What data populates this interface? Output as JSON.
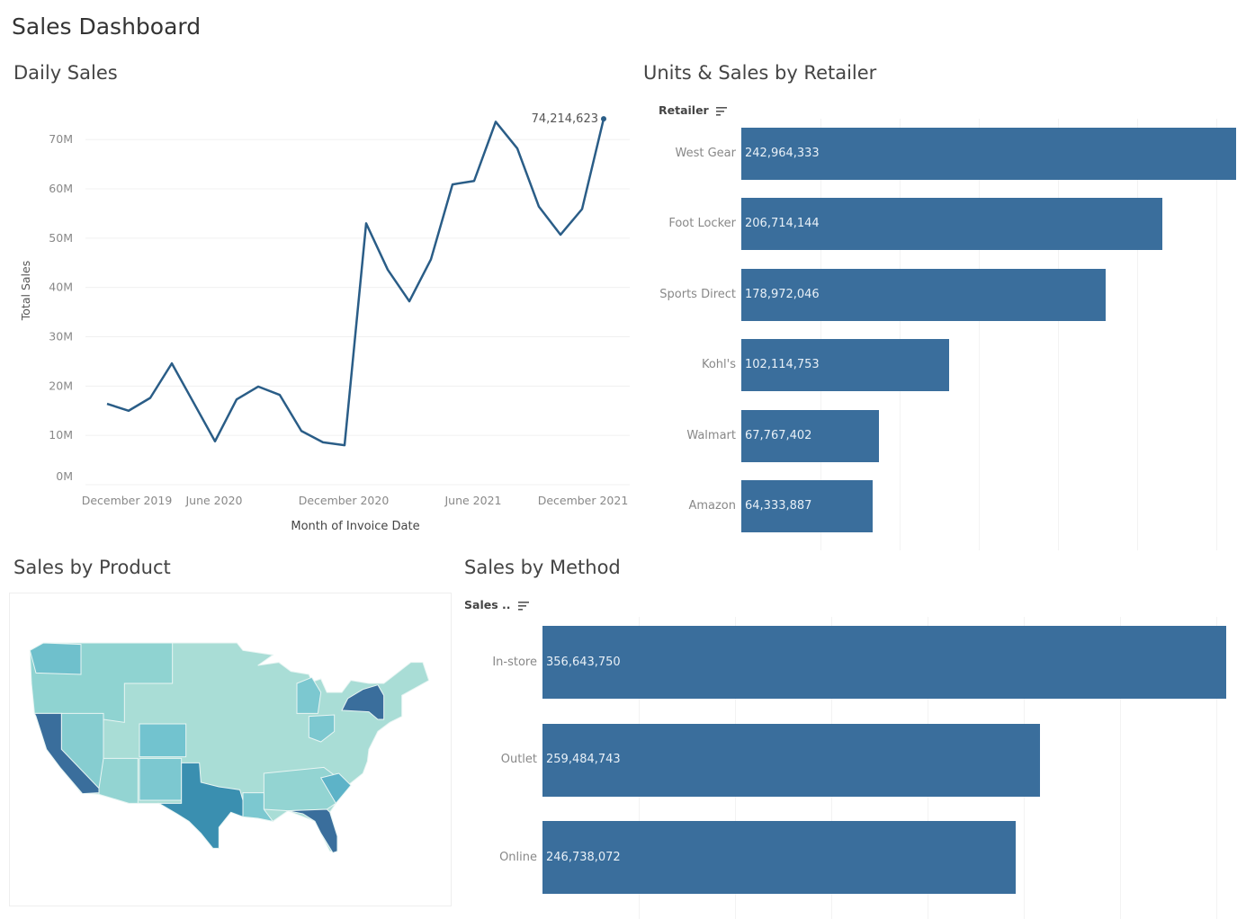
{
  "dashboard": {
    "title": "Sales Dashboard"
  },
  "daily_sales": {
    "title": "Daily Sales",
    "chart_data": {
      "type": "line",
      "x": [
        "2020-01",
        "2020-02",
        "2020-03",
        "2020-04",
        "2020-05",
        "2020-06",
        "2020-07",
        "2020-08",
        "2020-09",
        "2020-10",
        "2020-11",
        "2020-12",
        "2021-01",
        "2021-02",
        "2021-03",
        "2021-04",
        "2021-05",
        "2021-06",
        "2021-07",
        "2021-08",
        "2021-09",
        "2021-10",
        "2021-11",
        "2021-12"
      ],
      "values": [
        16.4,
        15.0,
        17.6,
        24.6,
        16.7,
        8.8,
        17.3,
        19.9,
        18.2,
        10.9,
        8.6,
        8.0,
        53.0,
        43.6,
        37.2,
        45.7,
        60.9,
        61.6,
        73.6,
        68.2,
        56.4,
        50.7,
        55.9,
        74.214623
      ],
      "unit": "M",
      "ylabel": "Total Sales",
      "xlabel": "Month of Invoice Date",
      "ylim": [
        0,
        75
      ],
      "y_ticks": [
        "0M",
        "10M",
        "20M",
        "30M",
        "40M",
        "50M",
        "60M",
        "70M"
      ],
      "x_tick_labels": [
        "December 2019",
        "June 2020",
        "December 2020",
        "June 2021",
        "December 2021"
      ],
      "annotation": "74,214,623",
      "grid": true,
      "color": "#2a5d87"
    }
  },
  "retailer": {
    "title": "Units & Sales by Retailer",
    "header": "Retailer",
    "sort_icon": "sort-descending-icon",
    "chart_data": {
      "type": "bar",
      "orientation": "horizontal",
      "categories": [
        "West Gear",
        "Foot Locker",
        "Sports Direct",
        "Kohl's",
        "Walmart",
        "Amazon"
      ],
      "values": [
        242964333,
        206714144,
        178972046,
        102114753,
        67767402,
        64333887
      ],
      "labels": [
        "242,964,333",
        "206,714,144",
        "178,972,046",
        "102,114,753",
        "67,767,402",
        "64,333,887"
      ],
      "color": "#3a6e9c"
    }
  },
  "product": {
    "title": "Sales by Product",
    "chart_data": {
      "type": "choropleth",
      "region": "United States",
      "highlighted_states": [
        "California",
        "Texas",
        "Florida",
        "New York"
      ],
      "colors": {
        "low": "#b3e3da",
        "mid": "#7cc8d0",
        "high": "#3a8fb0",
        "max": "#3a6e9c"
      }
    }
  },
  "method": {
    "title": "Sales by Method",
    "header": "Sales ..",
    "sort_icon": "sort-descending-icon",
    "chart_data": {
      "type": "bar",
      "orientation": "horizontal",
      "categories": [
        "In-store",
        "Outlet",
        "Online"
      ],
      "values": [
        356643750,
        259484743,
        246738072
      ],
      "labels": [
        "356,643,750",
        "259,484,743",
        "246,738,072"
      ],
      "color": "#3a6e9c"
    }
  }
}
